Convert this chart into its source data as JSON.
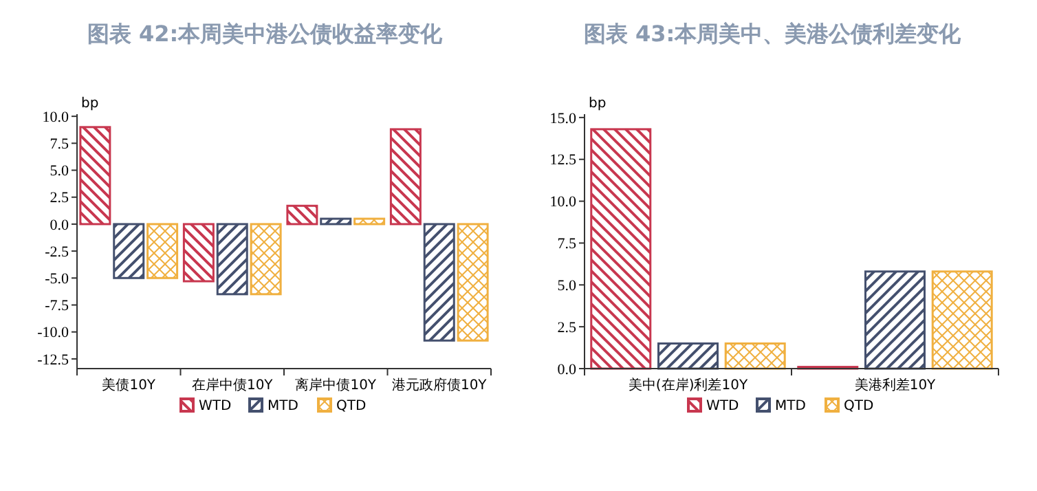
{
  "chart_data": [
    {
      "type": "bar",
      "title": "图表 42:本周美中港公债收益率变化",
      "ylabel": "bp",
      "categories": [
        "美债10Y",
        "在岸中债10Y",
        "离岸中债10Y",
        "港元政府债10Y"
      ],
      "ylim": [
        -13.4,
        10.2
      ],
      "yticks": [
        {
          "value": 10,
          "label": "10.0"
        },
        {
          "value": 7.5,
          "label": "7.5"
        },
        {
          "value": 5,
          "label": "5.0"
        },
        {
          "value": 2.5,
          "label": "2.5"
        },
        {
          "value": 0,
          "label": "0.0"
        },
        {
          "value": -2.5,
          "label": "-2.5"
        },
        {
          "value": -5,
          "label": "-5.0"
        },
        {
          "value": -7.5,
          "label": "-7.5"
        },
        {
          "value": -10,
          "label": "-10.0"
        },
        {
          "value": -12.5,
          "label": "-12.5"
        }
      ],
      "grid": false,
      "legend": "bottom",
      "series": [
        {
          "name": "WTD",
          "color": "#c8374f",
          "values": [
            9.0,
            -5.3,
            1.7,
            8.8
          ]
        },
        {
          "name": "MTD",
          "color": "#44506e",
          "values": [
            -5.0,
            -6.5,
            0.5,
            -10.8
          ]
        },
        {
          "name": "QTD",
          "color": "#f0b040",
          "values": [
            -5.0,
            -6.5,
            0.5,
            -10.8
          ]
        }
      ]
    },
    {
      "type": "bar",
      "title": "图表 43:本周美中、美港公债利差变化",
      "ylabel": "bp",
      "categories": [
        "美中(在岸)利差10Y",
        "美港利差10Y"
      ],
      "ylim": [
        0,
        15.2
      ],
      "yticks": [
        {
          "value": 15,
          "label": "15.0"
        },
        {
          "value": 12.5,
          "label": "12.5"
        },
        {
          "value": 10,
          "label": "10.0"
        },
        {
          "value": 7.5,
          "label": "7.5"
        },
        {
          "value": 5,
          "label": "5.0"
        },
        {
          "value": 2.5,
          "label": "2.5"
        },
        {
          "value": 0,
          "label": "0.0"
        }
      ],
      "grid": false,
      "legend": "bottom",
      "series": [
        {
          "name": "WTD",
          "color": "#c8374f",
          "values": [
            14.3,
            0.1
          ]
        },
        {
          "name": "MTD",
          "color": "#44506e",
          "values": [
            1.5,
            5.8
          ]
        },
        {
          "name": "QTD",
          "color": "#f0b040",
          "values": [
            1.5,
            5.8
          ]
        }
      ]
    }
  ]
}
